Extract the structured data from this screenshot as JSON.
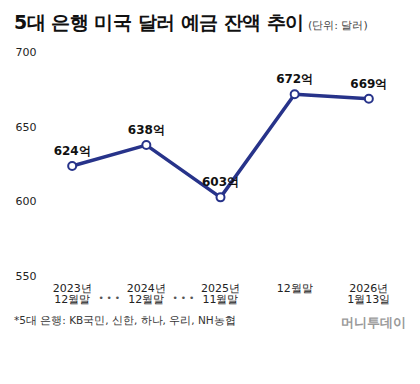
{
  "chart_data": {
    "type": "line",
    "title": "5대 은행 미국 달러 예금 잔액 추이",
    "subtitle": "(단위: 달러)",
    "categories": [
      "2023년\n12월말",
      "2024년\n12월말",
      "2025년\n11월말",
      "12월말",
      "2026년\n1월13일"
    ],
    "values": [
      624,
      638,
      603,
      672,
      669
    ],
    "value_labels": [
      "624억",
      "638억",
      "603억",
      "672억",
      "669억"
    ],
    "color": "#27338a",
    "marker": "circle",
    "ylim": [
      550,
      700
    ],
    "yticks": [
      550,
      600,
      650,
      700
    ],
    "grid": false,
    "data_labels": true,
    "annotations": [
      "• • •",
      "• • •"
    ],
    "footnote": "*5대 은행: KB국민, 신한, 하나, 우리, NH농협",
    "source": "머니투데이"
  }
}
